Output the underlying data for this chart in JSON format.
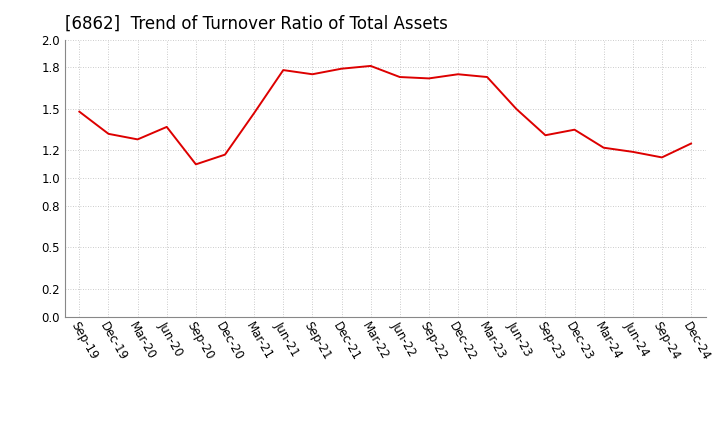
{
  "title": "[6862]  Trend of Turnover Ratio of Total Assets",
  "x_labels": [
    "Sep-19",
    "Dec-19",
    "Mar-20",
    "Jun-20",
    "Sep-20",
    "Dec-20",
    "Mar-21",
    "Jun-21",
    "Sep-21",
    "Dec-21",
    "Mar-22",
    "Jun-22",
    "Sep-22",
    "Dec-22",
    "Mar-23",
    "Jun-23",
    "Sep-23",
    "Dec-23",
    "Mar-24",
    "Jun-24",
    "Sep-24",
    "Dec-24"
  ],
  "values": [
    1.48,
    1.32,
    1.28,
    1.37,
    1.1,
    1.17,
    1.47,
    1.78,
    1.75,
    1.79,
    1.81,
    1.73,
    1.72,
    1.75,
    1.73,
    1.5,
    1.31,
    1.35,
    1.22,
    1.19,
    1.15,
    1.25
  ],
  "line_color": "#dd0000",
  "ylim": [
    0.0,
    2.0
  ],
  "yticks": [
    0.0,
    0.2,
    0.5,
    0.8,
    1.0,
    1.2,
    1.5,
    1.8,
    2.0
  ],
  "background_color": "#ffffff",
  "title_fontsize": 12,
  "axis_fontsize": 8.5,
  "grid_color": "#bbbbbb",
  "line_width": 1.4
}
